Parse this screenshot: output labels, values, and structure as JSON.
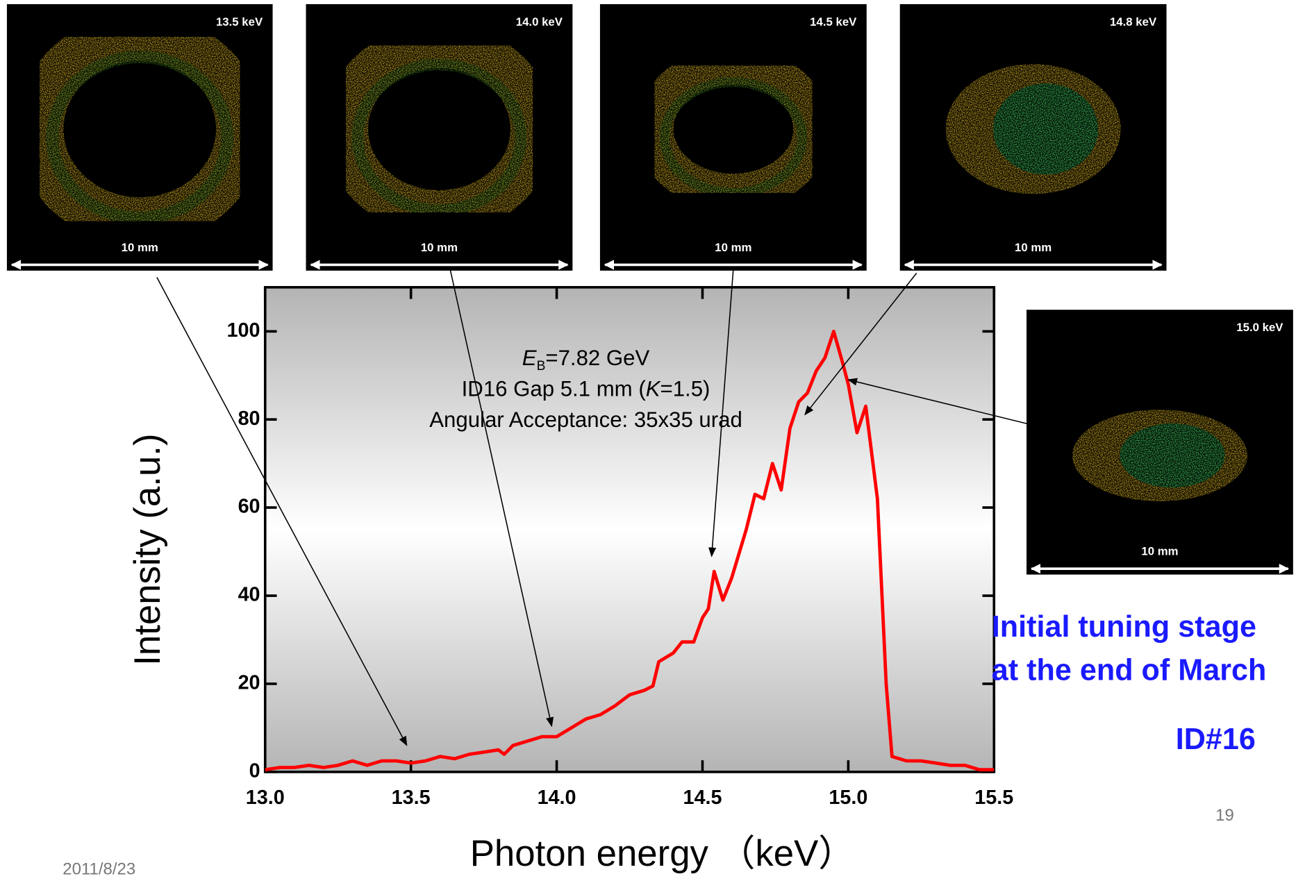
{
  "chart_data": {
    "type": "line",
    "x_label": "Photon energy （keV）",
    "y_label": "Intensity (a.u.)",
    "annotations": [
      [
        "E",
        "B",
        "=7.82 GeV"
      ],
      [
        "ID16 Gap 5.1 mm (",
        "K",
        "=1.5)"
      ],
      [
        "Angular Acceptance: 35x35 urad"
      ]
    ],
    "x": [
      13.0,
      13.05,
      13.1,
      13.15,
      13.2,
      13.25,
      13.3,
      13.35,
      13.4,
      13.45,
      13.5,
      13.55,
      13.6,
      13.65,
      13.7,
      13.75,
      13.8,
      13.82,
      13.85,
      13.9,
      13.95,
      14.0,
      14.05,
      14.1,
      14.15,
      14.2,
      14.25,
      14.3,
      14.33,
      14.35,
      14.4,
      14.43,
      14.47,
      14.5,
      14.52,
      14.54,
      14.57,
      14.6,
      14.65,
      14.68,
      14.71,
      14.74,
      14.77,
      14.8,
      14.83,
      14.86,
      14.89,
      14.92,
      14.95,
      14.98,
      15.0,
      15.03,
      15.06,
      15.1,
      15.13,
      15.15,
      15.2,
      15.25,
      15.3,
      15.35,
      15.4,
      15.45,
      15.5
    ],
    "series": [
      {
        "color": "#ff0000",
        "values": [
          0.5,
          1,
          1,
          1.5,
          1,
          1.5,
          2.5,
          1.5,
          2.5,
          2.5,
          2,
          2.5,
          3.5,
          3,
          4,
          4.5,
          5,
          4,
          6,
          7,
          8,
          8,
          10,
          12,
          13,
          15,
          17.5,
          18.5,
          19.5,
          25,
          27,
          29.5,
          29.5,
          35,
          37,
          45.5,
          39,
          44,
          55,
          63,
          62,
          70,
          64,
          78,
          84,
          86,
          91,
          94,
          100,
          93,
          88,
          77,
          83,
          62,
          20,
          3.5,
          2.5,
          2.5,
          2,
          1.5,
          1.5,
          0.5,
          0.5
        ]
      }
    ],
    "xlim": [
      13.0,
      15.5
    ],
    "ylim": [
      0,
      110
    ],
    "xticks": [
      {
        "value": 13.0,
        "label": "13.0"
      },
      13.5,
      {
        "value": 14.0,
        "label": "14.0"
      },
      14.5,
      {
        "value": 15.0,
        "label": "15.0"
      },
      15.5
    ],
    "yticks": [
      0,
      20,
      40,
      60,
      80,
      100
    ]
  },
  "images": [
    {
      "energy": "13.5 keV",
      "scale": "10 mm"
    },
    {
      "energy": "14.0 keV",
      "scale": "10 mm"
    },
    {
      "energy": "14.5 keV",
      "scale": "10 mm"
    },
    {
      "energy": "14.8 keV",
      "scale": "10 mm"
    },
    {
      "energy": "15.0 keV",
      "scale": "10 mm"
    }
  ],
  "note": [
    "Initial tuning stage",
    "at the end of March"
  ],
  "device": "ID#16",
  "date": "2011/8/23",
  "page_number": "19"
}
